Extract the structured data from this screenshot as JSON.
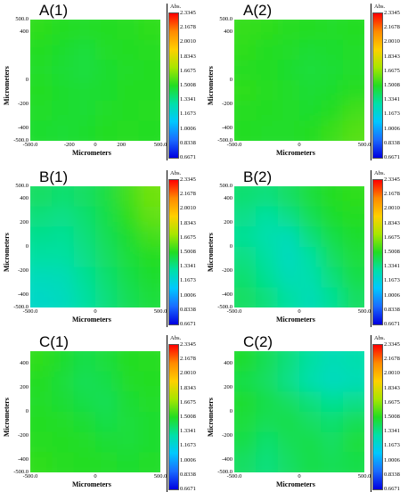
{
  "colorbar": {
    "unit_label": "Abs.",
    "ticks": [
      "2.3345",
      "2.1678",
      "2.0010",
      "1.8343",
      "1.6675",
      "1.5008",
      "1.3341",
      "1.1673",
      "1.0006",
      "0.8338",
      "0.6671"
    ]
  },
  "chart_data": [
    {
      "type": "heatmap",
      "title": "A(1)",
      "xlabel": "Micrometers",
      "ylabel": "Micrometers",
      "xticks": [
        "-500.0",
        "-200",
        "0",
        "200",
        "500.0"
      ],
      "yticks": [
        "500.0",
        "400",
        "0",
        "-200",
        "-400",
        "-500.0"
      ],
      "xlim": [
        -500,
        500
      ],
      "ylim": [
        -500,
        500
      ],
      "zlim": [
        0.6671,
        2.3345
      ],
      "z_grid": [
        [
          1.52,
          1.5,
          1.49,
          1.5,
          1.51,
          1.52
        ],
        [
          1.5,
          1.48,
          1.46,
          1.49,
          1.5,
          1.51
        ],
        [
          1.49,
          1.47,
          1.45,
          1.48,
          1.49,
          1.5
        ],
        [
          1.5,
          1.48,
          1.47,
          1.48,
          1.5,
          1.5
        ],
        [
          1.49,
          1.48,
          1.47,
          1.49,
          1.5,
          1.51
        ],
        [
          1.48,
          1.47,
          1.48,
          1.5,
          1.51,
          1.5
        ]
      ]
    },
    {
      "type": "heatmap",
      "title": "A(2)",
      "xlabel": "Micrometers",
      "ylabel": "Micrometers",
      "xticks": [
        "-500.0",
        "0",
        "500.0"
      ],
      "yticks": [
        "500.0",
        "400",
        "0",
        "-200",
        "-400",
        "-500.0"
      ],
      "xlim": [
        -500,
        500
      ],
      "ylim": [
        -500,
        500
      ],
      "zlim": [
        0.6671,
        2.3345
      ],
      "z_grid": [
        [
          1.53,
          1.52,
          1.51,
          1.5,
          1.49,
          1.5
        ],
        [
          1.52,
          1.5,
          1.49,
          1.47,
          1.48,
          1.49
        ],
        [
          1.51,
          1.5,
          1.48,
          1.46,
          1.47,
          1.49
        ],
        [
          1.52,
          1.51,
          1.49,
          1.47,
          1.48,
          1.51
        ],
        [
          1.51,
          1.5,
          1.49,
          1.48,
          1.5,
          1.55
        ],
        [
          1.5,
          1.49,
          1.49,
          1.5,
          1.54,
          1.58
        ]
      ]
    },
    {
      "type": "heatmap",
      "title": "B(1)",
      "xlabel": "Micrometers",
      "ylabel": "Micrometers",
      "xticks": [
        "-500.0",
        "0",
        "500.0"
      ],
      "yticks": [
        "500.0",
        "400",
        "200",
        "0",
        "-200",
        "-400",
        "-500.0"
      ],
      "xlim": [
        -500,
        500
      ],
      "ylim": [
        -500,
        500
      ],
      "zlim": [
        0.6671,
        2.3345
      ],
      "z_grid": [
        [
          1.4,
          1.38,
          1.4,
          1.45,
          1.55,
          1.62
        ],
        [
          1.36,
          1.34,
          1.38,
          1.44,
          1.52,
          1.6
        ],
        [
          1.33,
          1.32,
          1.36,
          1.42,
          1.48,
          1.55
        ],
        [
          1.3,
          1.3,
          1.34,
          1.4,
          1.46,
          1.5
        ],
        [
          1.25,
          1.26,
          1.32,
          1.38,
          1.44,
          1.48
        ],
        [
          1.22,
          1.24,
          1.3,
          1.36,
          1.42,
          1.46
        ]
      ]
    },
    {
      "type": "heatmap",
      "title": "B(2)",
      "xlabel": "Micrometers",
      "ylabel": "Micrometers",
      "xticks": [
        "-500.0",
        "0",
        "500.0"
      ],
      "yticks": [
        "500.0",
        "400",
        "200",
        "0",
        "-200",
        "-400",
        "-500.0"
      ],
      "xlim": [
        -500,
        500
      ],
      "ylim": [
        -500,
        500
      ],
      "zlim": [
        0.6671,
        2.3345
      ],
      "z_grid": [
        [
          1.38,
          1.36,
          1.4,
          1.46,
          1.5,
          1.52
        ],
        [
          1.34,
          1.3,
          1.34,
          1.42,
          1.48,
          1.5
        ],
        [
          1.32,
          1.28,
          1.26,
          1.36,
          1.44,
          1.48
        ],
        [
          1.35,
          1.3,
          1.24,
          1.3,
          1.4,
          1.46
        ],
        [
          1.38,
          1.32,
          1.26,
          1.28,
          1.36,
          1.44
        ],
        [
          1.4,
          1.36,
          1.3,
          1.26,
          1.32,
          1.4
        ]
      ]
    },
    {
      "type": "heatmap",
      "title": "C(1)",
      "xlabel": "Micrometers",
      "ylabel": "Micrometers",
      "xticks": [
        "-500.0",
        "0",
        "500.0"
      ],
      "yticks": [
        "400",
        "200",
        "0",
        "-200",
        "-400",
        "-500.0"
      ],
      "xlim": [
        -500,
        500
      ],
      "ylim": [
        -500,
        500
      ],
      "zlim": [
        0.6671,
        2.3345
      ],
      "z_grid": [
        [
          1.52,
          1.48,
          1.44,
          1.46,
          1.5,
          1.51
        ],
        [
          1.5,
          1.46,
          1.42,
          1.44,
          1.49,
          1.5
        ],
        [
          1.49,
          1.47,
          1.44,
          1.42,
          1.47,
          1.49
        ],
        [
          1.5,
          1.49,
          1.47,
          1.44,
          1.46,
          1.48
        ],
        [
          1.51,
          1.5,
          1.49,
          1.47,
          1.46,
          1.48
        ],
        [
          1.52,
          1.51,
          1.5,
          1.49,
          1.48,
          1.49
        ]
      ]
    },
    {
      "type": "heatmap",
      "title": "C(2)",
      "xlabel": "Micrometers",
      "ylabel": "Micrometers",
      "xticks": [
        "-500.0",
        "0",
        "500.0"
      ],
      "yticks": [
        "400",
        "200",
        "0",
        "-200",
        "-400",
        "-500.0"
      ],
      "xlim": [
        -500,
        500
      ],
      "ylim": [
        -500,
        500
      ],
      "zlim": [
        0.6671,
        2.3345
      ],
      "z_grid": [
        [
          1.48,
          1.42,
          1.36,
          1.3,
          1.26,
          1.28
        ],
        [
          1.44,
          1.4,
          1.34,
          1.28,
          1.24,
          1.26
        ],
        [
          1.48,
          1.44,
          1.4,
          1.36,
          1.32,
          1.34
        ],
        [
          1.46,
          1.42,
          1.44,
          1.4,
          1.38,
          1.42
        ],
        [
          1.44,
          1.38,
          1.42,
          1.44,
          1.4,
          1.46
        ],
        [
          1.4,
          1.36,
          1.4,
          1.44,
          1.42,
          1.44
        ]
      ]
    }
  ]
}
